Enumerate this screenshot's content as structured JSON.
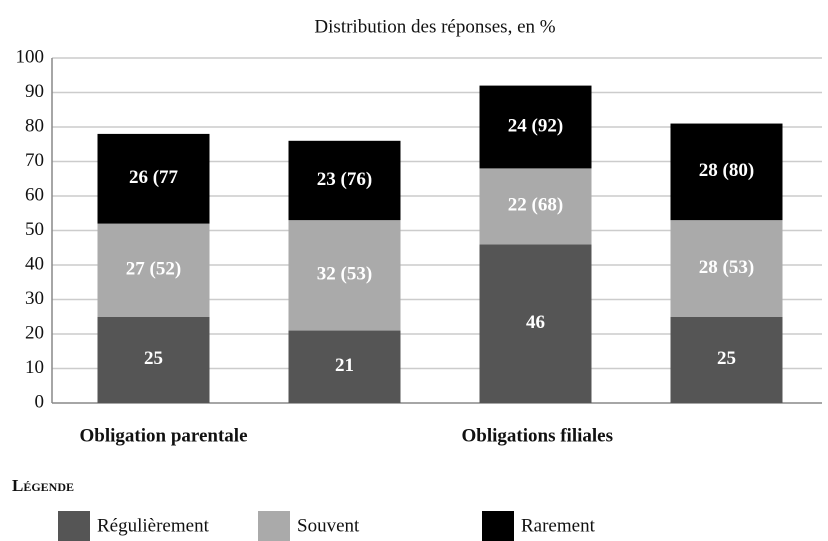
{
  "chart_data": {
    "type": "stacked-bar",
    "title": "Distribution des réponses, en %",
    "categories": [
      null,
      null,
      null,
      null
    ],
    "groups": [
      "Obligation parentale",
      "Obligations filiales"
    ],
    "legend_title": "Légende",
    "series": [
      {
        "name": "Régulièrement",
        "color": "#555555",
        "values": [
          25,
          21,
          46,
          25
        ]
      },
      {
        "name": "Souvent",
        "color": "#aaaaaa",
        "values": [
          27,
          32,
          22,
          28
        ],
        "value_labels": [
          "27 (52)",
          "32 (53)",
          "22 (68)",
          "28 (53)"
        ]
      },
      {
        "name": "Rarement",
        "color": "#000000",
        "values": [
          26,
          23,
          24,
          28
        ],
        "value_labels": [
          "26 (77",
          "23 (76)",
          "24 (92)",
          "28 (80)"
        ]
      }
    ],
    "ylim": [
      0,
      100
    ],
    "yticks": [
      0,
      10,
      20,
      30,
      40,
      50,
      60,
      70,
      80,
      90,
      100
    ],
    "grid": true
  }
}
